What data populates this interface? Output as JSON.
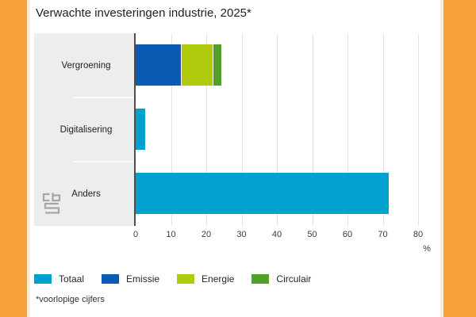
{
  "title": "Verwachte investeringen industrie, 2025*",
  "footnote": "*voorlopige cijfers",
  "logo": "cbs-logo",
  "colors": {
    "edge_orange": "#f9a23c",
    "edge_orange_soft": "#fcebd2",
    "panel_gray": "#ededed",
    "axis_line": "#4d4d4d",
    "gridline": "#e5e5e5",
    "totaal": "#00a1ce",
    "emissie": "#0b5ab4",
    "energie": "#afca0b",
    "circulair": "#4fa227"
  },
  "chart_data": {
    "type": "bar",
    "orientation": "horizontal",
    "stacked": true,
    "title": "Verwachte investeringen industrie, 2025*",
    "categories": [
      "Vergroening",
      "Digitalisering",
      "Anders"
    ],
    "series": [
      {
        "name": "Totaal",
        "color": "#00a1ce",
        "values": [
          null,
          3,
          72
        ]
      },
      {
        "name": "Emissie",
        "color": "#0b5ab4",
        "values": [
          13,
          null,
          null
        ]
      },
      {
        "name": "Energie",
        "color": "#afca0b",
        "values": [
          9,
          null,
          null
        ]
      },
      {
        "name": "Circulair",
        "color": "#4fa227",
        "values": [
          2.5,
          null,
          null
        ]
      }
    ],
    "xlabel": "%",
    "xlim": [
      0,
      85
    ],
    "ticks": [
      0,
      10,
      20,
      30,
      40,
      50,
      60,
      70,
      80
    ],
    "grid": true,
    "legend": [
      "Totaal",
      "Emissie",
      "Energie",
      "Circulair"
    ],
    "legend_position": "bottom"
  }
}
